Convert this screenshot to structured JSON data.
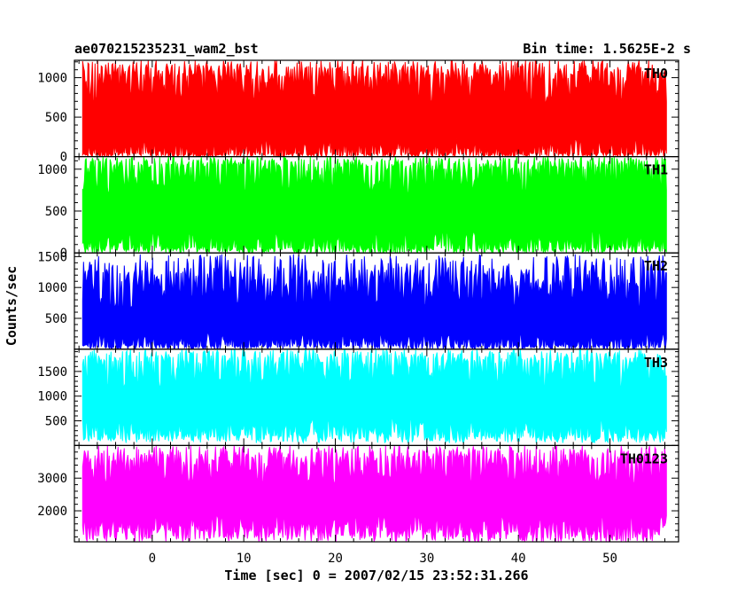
{
  "chart_data": {
    "type": "line",
    "title_left": "ae070215235231_wam2_bst",
    "title_right": "Bin time: 1.5625E-2 s",
    "xlabel": "Time [sec] 0 = 2007/02/15 23:52:31.266",
    "ylabel": "Counts/sec",
    "xlim": [
      -8.5,
      57.5
    ],
    "data_x_range": [
      -7.6,
      56.2
    ],
    "x_ticks": [
      0,
      10,
      20,
      30,
      40,
      50
    ],
    "panels": [
      {
        "name": "TH0",
        "color": "#ff0000",
        "ylim": [
          0,
          1220
        ],
        "y_ticks": [
          0,
          500,
          1000
        ],
        "baseline_low": 50,
        "baseline_high": 1000,
        "spike_min": 0,
        "spike_max": 1220
      },
      {
        "name": "TH1",
        "color": "#00ff00",
        "ylim": [
          0,
          1150
        ],
        "y_ticks": [
          0,
          500,
          1000
        ],
        "baseline_low": 80,
        "baseline_high": 1000,
        "spike_min": 0,
        "spike_max": 1150
      },
      {
        "name": "TH2",
        "color": "#0000ff",
        "ylim": [
          0,
          1560
        ],
        "y_ticks": [
          500,
          1000,
          1500
        ],
        "baseline_low": 80,
        "baseline_high": 1000,
        "spike_min": 0,
        "spike_max": 1540
      },
      {
        "name": "TH3",
        "color": "#00ffff",
        "ylim": [
          0,
          1950
        ],
        "y_ticks": [
          500,
          1000,
          1500
        ],
        "baseline_low": 280,
        "baseline_high": 1650,
        "spike_min": 50,
        "spike_max": 1950
      },
      {
        "name": "TH0123",
        "color": "#ff00ff",
        "ylim": [
          1050,
          4000
        ],
        "y_ticks": [
          2000,
          3000
        ],
        "baseline_low": 1500,
        "baseline_high": 3450,
        "spike_min": 1050,
        "spike_max": 4000
      }
    ]
  }
}
